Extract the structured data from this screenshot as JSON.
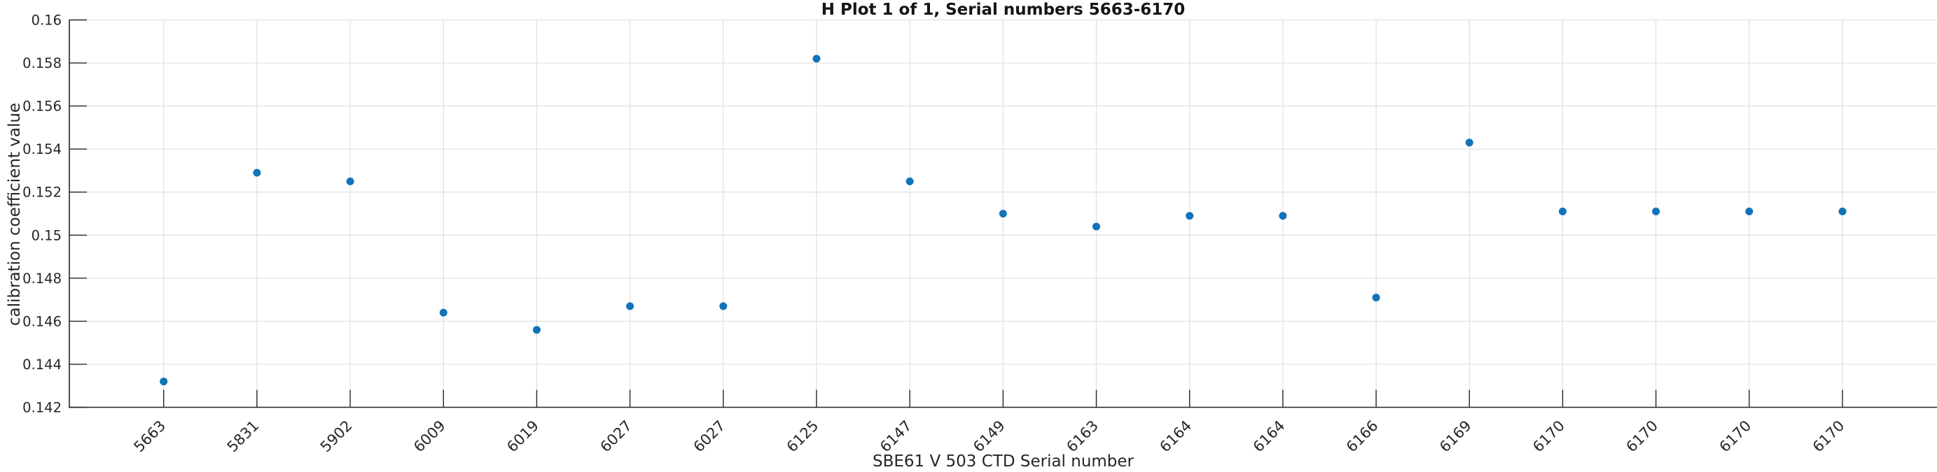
{
  "chart_data": {
    "type": "scatter",
    "title": "H Plot 1 of 1, Serial numbers 5663-6170",
    "xlabel": "SBE61 V 503 CTD Serial number",
    "ylabel": "calibration coefficient value",
    "categories": [
      "5663",
      "5831",
      "5902",
      "6009",
      "6019",
      "6027",
      "6027",
      "6125",
      "6147",
      "6149",
      "6163",
      "6164",
      "6164",
      "6166",
      "6169",
      "6170",
      "6170",
      "6170",
      "6170"
    ],
    "values": [
      0.1432,
      0.1529,
      0.1525,
      0.1464,
      0.1456,
      0.1467,
      0.1467,
      0.1582,
      0.1525,
      0.151,
      0.1504,
      0.1509,
      0.1509,
      0.1471,
      0.1543,
      0.1511,
      0.1511,
      0.1511,
      0.1511
    ],
    "ylim": [
      0.142,
      0.16
    ],
    "ytick_labels": [
      "0.142",
      "0.144",
      "0.146",
      "0.148",
      "0.15",
      "0.152",
      "0.154",
      "0.156",
      "0.158",
      "0.16"
    ],
    "grid": true,
    "legend": "none",
    "marker": "circle",
    "marker_color": "#1173b8",
    "grid_color": "#e0e0e0",
    "axis_color": "#262626",
    "text_color": "#262626"
  }
}
